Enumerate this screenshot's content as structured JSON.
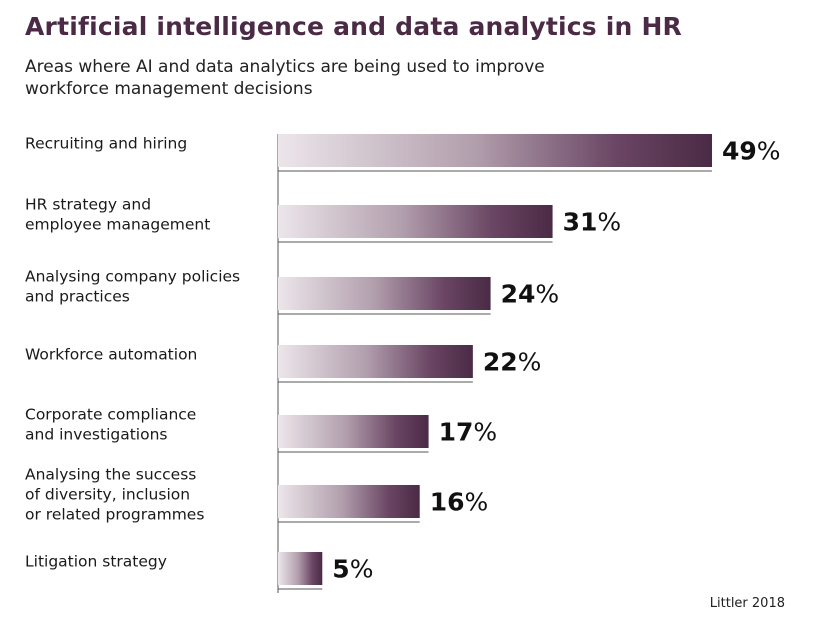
{
  "chart_data": {
    "type": "bar",
    "orientation": "horizontal",
    "title": "Artificial intelligence and data analytics in HR",
    "subtitle": "Areas where AI and data analytics are being used to improve workforce management decisions",
    "categories": [
      [
        "Recruiting and hiring"
      ],
      [
        "HR strategy and",
        "employee management"
      ],
      [
        "Analysing company policies",
        "and practices"
      ],
      [
        "Workforce automation"
      ],
      [
        "Corporate compliance",
        "and investigations"
      ],
      [
        "Analysing the success",
        "of diversity, inclusion",
        "or related programmes"
      ],
      [
        "Litigation strategy"
      ]
    ],
    "values": [
      49,
      31,
      24,
      22,
      17,
      16,
      5
    ],
    "value_suffix": "%",
    "xlim": [
      0,
      49
    ],
    "grid": false,
    "source": "Littler 2018"
  },
  "colors": {
    "bar_dark": "#4a2a45",
    "bar_light": "#ece6ea",
    "title": "#4a2a45"
  }
}
